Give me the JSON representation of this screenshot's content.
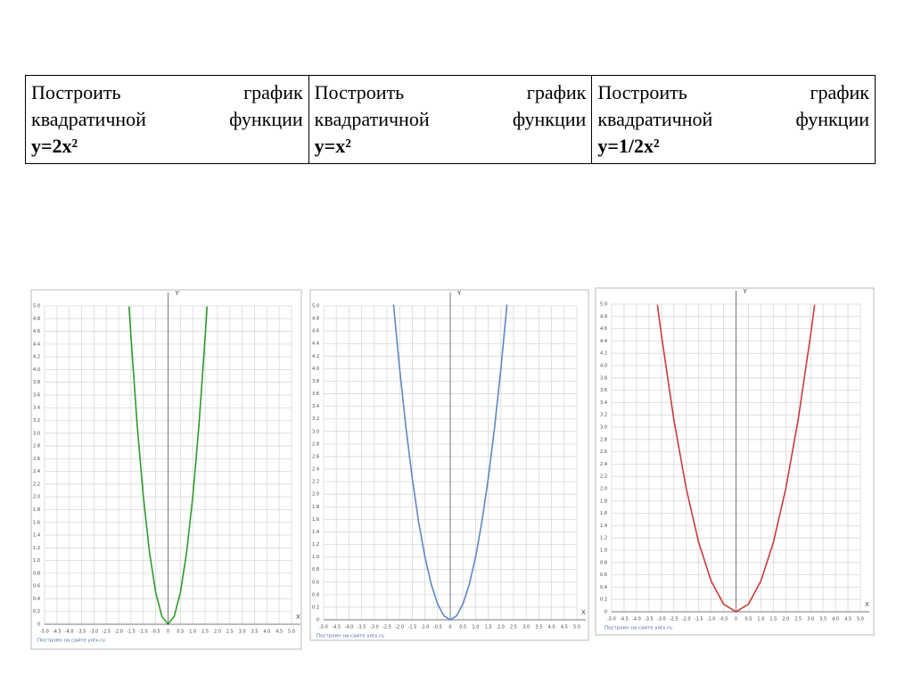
{
  "table": {
    "cells": [
      {
        "text": "Построить график квадратичной функции",
        "formula": "y=2x²"
      },
      {
        "text": "Построить график квадратичной функции",
        "formula": "y=x²"
      },
      {
        "text": "Построить график квадратичной функции",
        "formula": "y=1/2x²"
      }
    ]
  },
  "chart_data": [
    {
      "type": "line",
      "x_label": "X",
      "y_label": "Y",
      "credit": "Построен на сайте yotx.ru",
      "xlim": [
        -5,
        5
      ],
      "ylim": [
        0,
        5
      ],
      "grid": true,
      "xticks": [
        {
          "value": -5,
          "label": "-5.0"
        },
        -4.5,
        {
          "value": -4,
          "label": "-4.0"
        },
        -3.5,
        {
          "value": -3,
          "label": "-3.0"
        },
        -2.5,
        {
          "value": -2,
          "label": "-2.0"
        },
        -1.5,
        {
          "value": -1,
          "label": "-1.0"
        },
        -0.5,
        0,
        0.5,
        {
          "value": 1,
          "label": "1.0"
        },
        1.5,
        {
          "value": 2,
          "label": "2.0"
        },
        2.5,
        {
          "value": 3,
          "label": "3.0"
        },
        3.5,
        {
          "value": 4,
          "label": "4.0"
        },
        4.5,
        {
          "value": 5,
          "label": "5.0"
        }
      ],
      "yticks": [
        0,
        0.2,
        0.4,
        0.6,
        0.8,
        {
          "value": 1,
          "label": "1.0"
        },
        1.2,
        1.4,
        1.6,
        1.8,
        {
          "value": 2,
          "label": "2.0"
        },
        2.2,
        2.4,
        2.6,
        2.8,
        {
          "value": 3,
          "label": "3.0"
        },
        3.2,
        3.4,
        3.6,
        3.8,
        {
          "value": 4,
          "label": "4.0"
        },
        4.2,
        4.4,
        4.6,
        4.8,
        {
          "value": 5,
          "label": "5.0"
        }
      ],
      "x": [
        -1.58,
        -1.5,
        -1.25,
        -1,
        -0.75,
        -0.5,
        -0.25,
        0,
        0.25,
        0.5,
        0.75,
        1,
        1.25,
        1.5,
        1.58
      ],
      "series": [
        {
          "color": "#2e9a2e",
          "values": [
            4.99,
            4.5,
            3.125,
            2,
            1.125,
            0.5,
            0.125,
            0,
            0.125,
            0.5,
            1.125,
            2,
            3.125,
            4.5,
            4.99
          ]
        }
      ]
    },
    {
      "type": "line",
      "x_label": "X",
      "y_label": "Y",
      "credit": "Построен на сайте yotx.ru",
      "xlim": [
        -5,
        5
      ],
      "ylim": [
        0,
        5
      ],
      "grid": true,
      "xticks": [
        {
          "value": -5,
          "label": "-5.0"
        },
        -4.5,
        {
          "value": -4,
          "label": "-4.0"
        },
        -3.5,
        {
          "value": -3,
          "label": "-3.0"
        },
        -2.5,
        {
          "value": -2,
          "label": "-2.0"
        },
        -1.5,
        {
          "value": -1,
          "label": "-1.0"
        },
        -0.5,
        0,
        0.5,
        {
          "value": 1,
          "label": "1.0"
        },
        1.5,
        {
          "value": 2,
          "label": "2.0"
        },
        2.5,
        {
          "value": 3,
          "label": "3.0"
        },
        3.5,
        {
          "value": 4,
          "label": "4.0"
        },
        4.5,
        {
          "value": 5,
          "label": "5.0"
        }
      ],
      "yticks": [
        0,
        0.2,
        0.4,
        0.6,
        0.8,
        {
          "value": 1,
          "label": "1.0"
        },
        1.2,
        1.4,
        1.6,
        1.8,
        {
          "value": 2,
          "label": "2.0"
        },
        2.2,
        2.4,
        2.6,
        2.8,
        {
          "value": 3,
          "label": "3.0"
        },
        3.2,
        3.4,
        3.6,
        3.8,
        {
          "value": 4,
          "label": "4.0"
        },
        4.2,
        4.4,
        4.6,
        4.8,
        {
          "value": 5,
          "label": "5.0"
        }
      ],
      "x": [
        -2.24,
        -2,
        -1.75,
        -1.5,
        -1.25,
        -1,
        -0.75,
        -0.5,
        -0.25,
        0,
        0.25,
        0.5,
        0.75,
        1,
        1.25,
        1.5,
        1.75,
        2,
        2.24
      ],
      "series": [
        {
          "color": "#5b88c6",
          "values": [
            5.02,
            4,
            3.0625,
            2.25,
            1.5625,
            1,
            0.5625,
            0.25,
            0.0625,
            0,
            0.0625,
            0.25,
            0.5625,
            1,
            1.5625,
            2.25,
            3.0625,
            4,
            5.02
          ]
        }
      ]
    },
    {
      "type": "line",
      "x_label": "X",
      "y_label": "Y",
      "credit": "Построен на сайте yotx.ru",
      "xlim": [
        -5,
        5
      ],
      "ylim": [
        0,
        5
      ],
      "grid": true,
      "xticks": [
        {
          "value": -5,
          "label": "-5.0"
        },
        -4.5,
        {
          "value": -4,
          "label": "-4.0"
        },
        -3.5,
        {
          "value": -3,
          "label": "-3.0"
        },
        -2.5,
        {
          "value": -2,
          "label": "-2.0"
        },
        -1.5,
        {
          "value": -1,
          "label": "-1.0"
        },
        -0.5,
        0,
        0.5,
        {
          "value": 1,
          "label": "1.0"
        },
        1.5,
        {
          "value": 2,
          "label": "2.0"
        },
        2.5,
        {
          "value": 3,
          "label": "3.0"
        },
        3.5,
        {
          "value": 4,
          "label": "4.0"
        },
        4.5,
        {
          "value": 5,
          "label": "5.0"
        }
      ],
      "yticks": [
        0,
        0.2,
        0.4,
        0.6,
        0.8,
        {
          "value": 1,
          "label": "1.0"
        },
        1.2,
        1.4,
        1.6,
        1.8,
        {
          "value": 2,
          "label": "2.0"
        },
        2.2,
        2.4,
        2.6,
        2.8,
        {
          "value": 3,
          "label": "3.0"
        },
        3.2,
        3.4,
        3.6,
        3.8,
        {
          "value": 4,
          "label": "4.0"
        },
        4.2,
        4.4,
        4.6,
        4.8,
        {
          "value": 5,
          "label": "5.0"
        }
      ],
      "x": [
        -3.16,
        -3,
        -2.5,
        -2,
        -1.5,
        -1,
        -0.5,
        0,
        0.5,
        1,
        1.5,
        2,
        2.5,
        3,
        3.16
      ],
      "series": [
        {
          "color": "#c83c3c",
          "values": [
            4.99,
            4.5,
            3.125,
            2,
            1.125,
            0.5,
            0.125,
            0,
            0.125,
            0.5,
            1.125,
            2,
            3.125,
            4.5,
            4.99
          ]
        }
      ]
    }
  ]
}
